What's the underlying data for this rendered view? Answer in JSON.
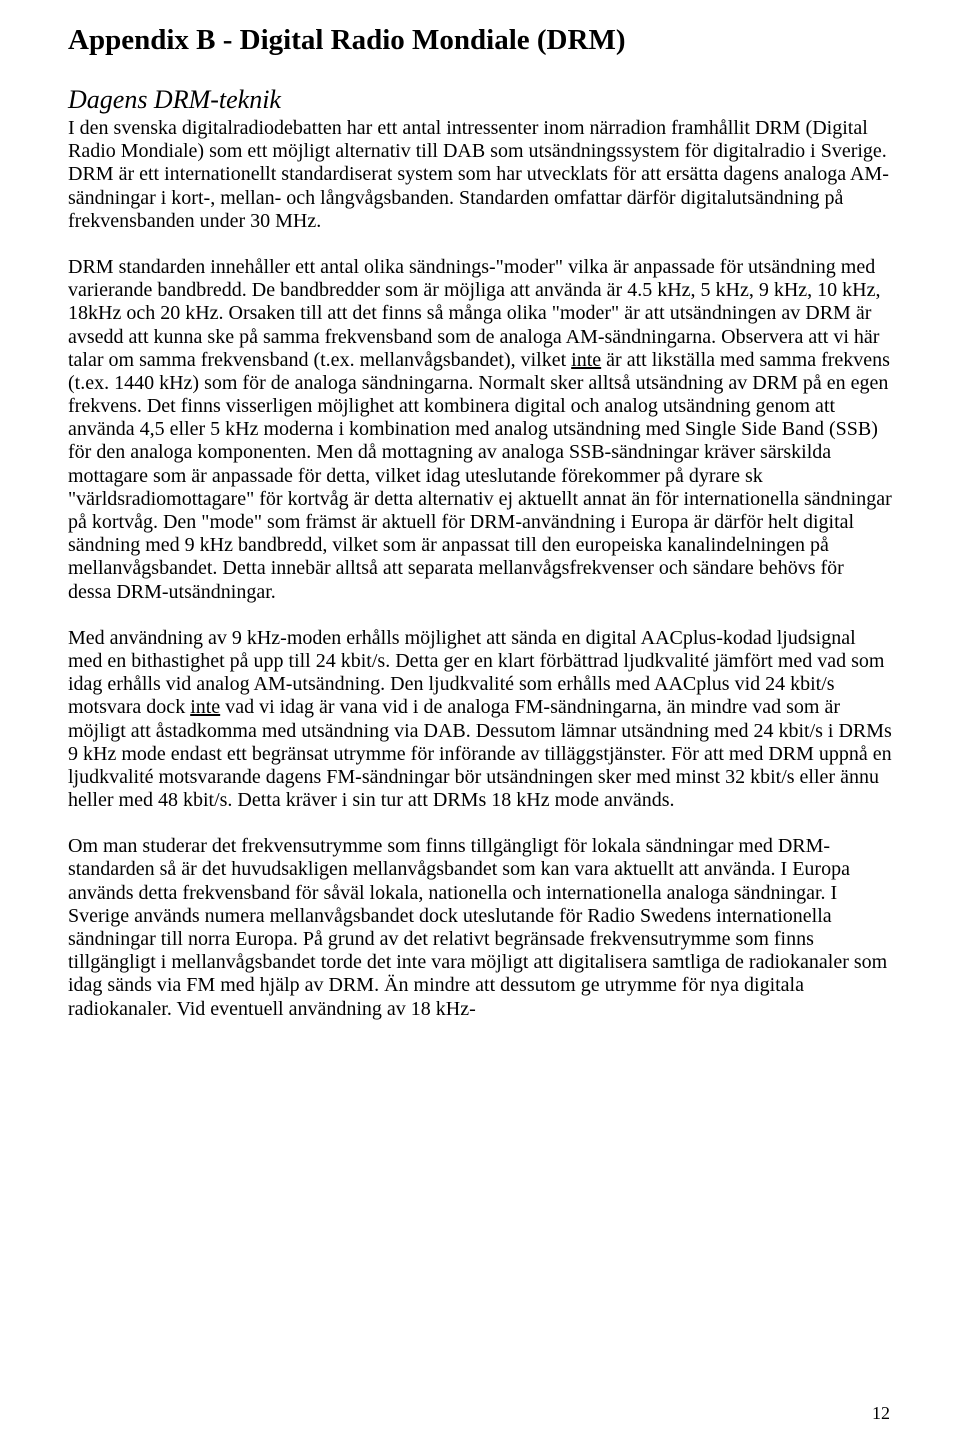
{
  "title": "Appendix B - Digital Radio Mondiale (DRM)",
  "sectionHeading": "Dagens DRM-teknik",
  "paragraphs": {
    "p1": "I den svenska digitalradiodebatten har ett antal intressenter inom närradion framhållit DRM (Digital Radio Mondiale) som ett möjligt alternativ till DAB som utsändningssystem för digitalradio i Sverige. DRM är ett internationellt standardiserat system som har utvecklats för att ersätta dagens analoga AM-sändningar i kort-, mellan- och långvågsbanden. Standarden omfattar därför digitalutsändning på frekvensbanden under 30 MHz.",
    "p2_a": "DRM standarden innehåller ett antal olika sändnings-\"moder\" vilka är anpassade för utsändning med varierande bandbredd. De bandbredder som är möjliga att använda är 4.5 kHz, 5 kHz, 9 kHz, 10 kHz, 18kHz och 20 kHz. Orsaken till att det finns så många olika \"moder\" är att utsändningen av DRM är avsedd att kunna ske på samma frekvensband som de analoga AM-sändningarna. Observera att vi här talar om samma frekvensband (t.ex. mellanvågsbandet), vilket ",
    "p2_u": "inte",
    "p2_b": " är att likställa med samma frekvens (t.ex. 1440 kHz) som för de analoga sändningarna. Normalt sker alltså utsändning av DRM på en egen frekvens. Det finns visserligen möjlighet att kombinera digital och analog utsändning genom att använda 4,5 eller 5 kHz moderna i kombination med analog utsändning med Single Side Band (SSB) för den analoga komponenten. Men då mottagning av analoga SSB-sändningar kräver särskilda mottagare som är anpassade för detta, vilket idag uteslutande förekommer på dyrare sk \"världsradiomottagare\" för kortvåg är detta alternativ ej aktuellt annat än för internationella sändningar på kortvåg. Den \"mode\" som främst är aktuell för DRM-användning i Europa är därför helt digital sändning med 9 kHz bandbredd, vilket som är anpassat till den europeiska kanalindelningen på mellanvågsbandet. Detta innebär alltså att separata mellanvågsfrekvenser och sändare behövs för dessa DRM-utsändningar.",
    "p3_a": "Med användning av 9 kHz-moden erhålls möjlighet att sända en digital AACplus-kodad ljudsignal med en bithastighet på upp till 24 kbit/s. Detta ger en klart förbättrad ljudkvalité jämfört med vad som idag erhålls vid analog AM-utsändning. Den ljudkvalité som erhålls med AACplus vid 24 kbit/s motsvara dock ",
    "p3_u": "inte",
    "p3_b": " vad vi idag är vana vid i de analoga FM-sändningarna, än mindre vad som är möjligt att åstadkomma med utsändning via DAB. Dessutom lämnar utsändning med 24 kbit/s i DRMs 9 kHz mode endast ett begränsat utrymme för införande av tilläggstjänster. För att med DRM uppnå en ljudkvalité motsvarande dagens FM-sändningar bör utsändningen sker med minst 32 kbit/s eller ännu heller med 48 kbit/s. Detta kräver i sin tur att DRMs 18 kHz mode används.",
    "p4": "Om man studerar det frekvensutrymme som finns tillgängligt för lokala sändningar med DRM-standarden så är det huvudsakligen mellanvågsbandet som kan vara aktuellt att använda. I Europa används detta frekvensband för såväl lokala, nationella och internationella analoga sändningar. I Sverige används numera mellanvågsbandet dock uteslutande för Radio Swedens internationella sändningar till norra Europa. På grund av det relativt begränsade frekvensutrymme som finns tillgängligt i mellanvågsbandet torde det inte vara möjligt att digitalisera samtliga de radiokanaler som idag sänds via FM med hjälp av DRM. Än mindre att dessutom ge utrymme för nya digitala radiokanaler. Vid eventuell användning av 18 kHz-"
  },
  "pageNumber": "12"
}
